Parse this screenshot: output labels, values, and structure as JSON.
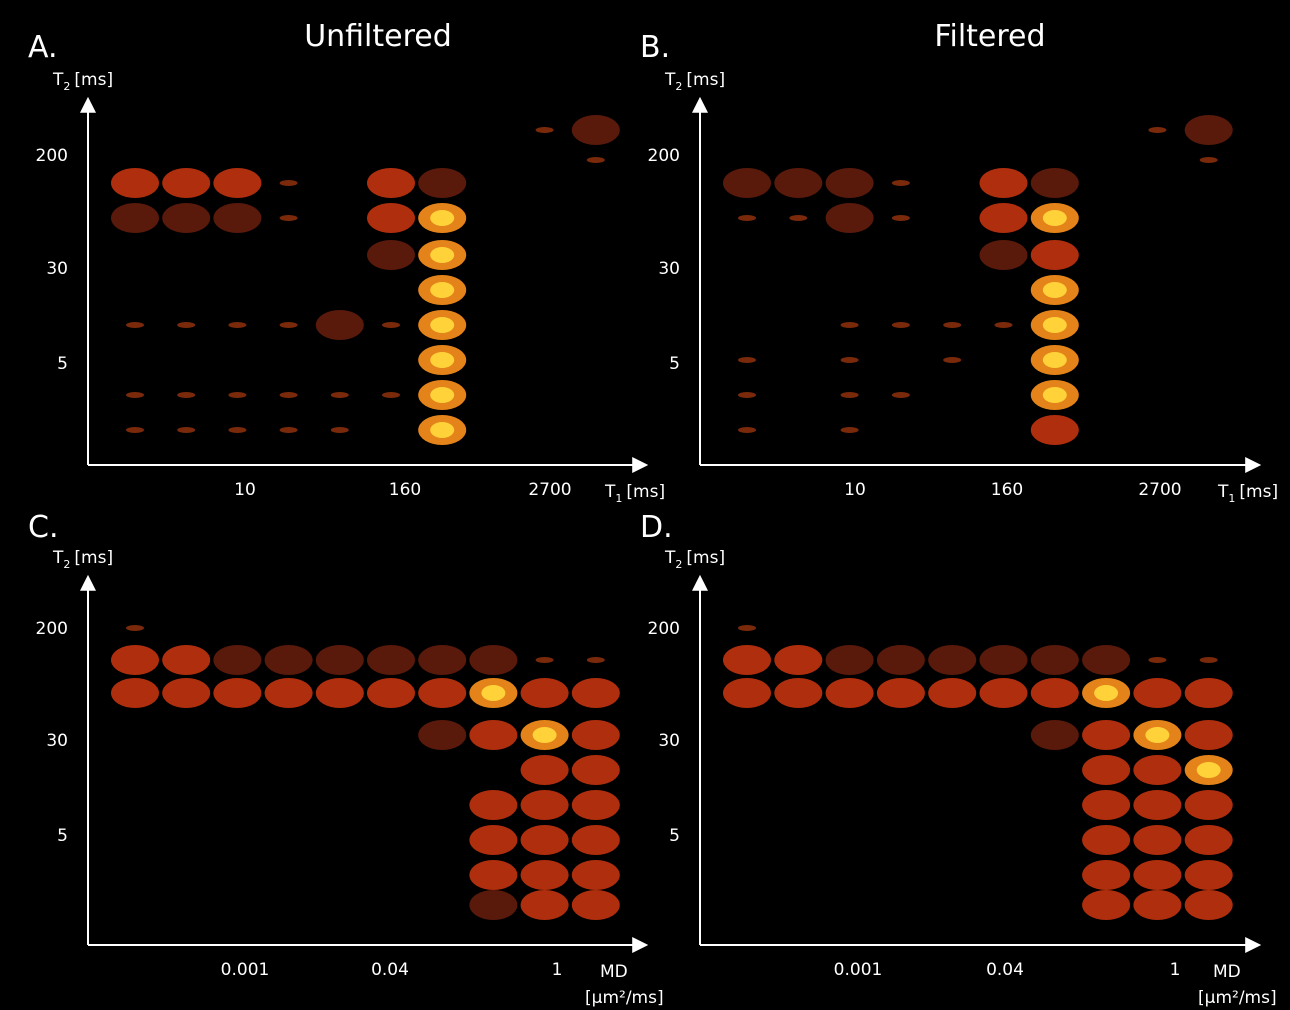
{
  "panels": [
    {
      "letter": "A.",
      "title": "Unfiltered",
      "y_axis": {
        "label": "T",
        "subscript": "2",
        "unit": "[ms]"
      },
      "y_ticks": [
        "200",
        "30",
        "5"
      ],
      "x_ticks": [
        "10",
        "160",
        "2700"
      ],
      "x_axis": {
        "label": "T",
        "subscript": "1",
        "unit": "[ms]"
      }
    },
    {
      "letter": "B.",
      "title": "Filtered",
      "y_axis": {
        "label": "T",
        "subscript": "2",
        "unit": "[ms]"
      },
      "y_ticks": [
        "200",
        "30",
        "5"
      ],
      "x_ticks": [
        "10",
        "160",
        "2700"
      ],
      "x_axis": {
        "label": "T",
        "subscript": "1",
        "unit": "[ms]"
      }
    },
    {
      "letter": "C.",
      "y_axis": {
        "label": "T",
        "subscript": "2",
        "unit": "[ms]"
      },
      "y_ticks": [
        "200",
        "30",
        "5"
      ],
      "x_ticks": [
        "0.001",
        "0.04",
        "1"
      ],
      "x_axis": {
        "label": "MD",
        "unit": "[µm²/ms]"
      }
    },
    {
      "letter": "D.",
      "y_axis": {
        "label": "T",
        "subscript": "2",
        "unit": "[ms]"
      },
      "y_ticks": [
        "200",
        "30",
        "5"
      ],
      "x_ticks": [
        "0.001",
        "0.04",
        "1"
      ],
      "x_axis": {
        "label": "MD",
        "unit": "[µm²/ms]"
      }
    }
  ]
}
